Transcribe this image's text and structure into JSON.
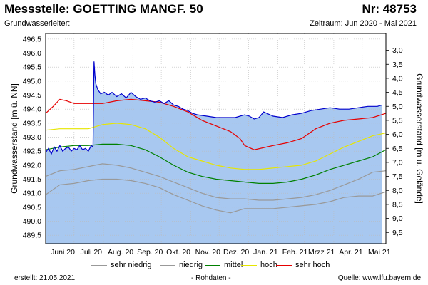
{
  "header": {
    "title": "Messstelle: GOETTING MANGF. 50",
    "number": "Nr: 48753",
    "aquifer_label": "Grundwasserleiter:",
    "period": "Zeitraum: Jun 2020 - Mai 2021"
  },
  "chart_data": {
    "type": "area",
    "ylabel_left": "Grundwasserstand [m ü. NN]",
    "ylabel_right": "Grundwasserstand [m u. Gelände]",
    "ylim_left": [
      489.2,
      496.7
    ],
    "ylim_right": [
      9.9,
      2.4
    ],
    "left_ticks": [
      "489,5",
      "490,0",
      "490,5",
      "491,0",
      "491,5",
      "492,0",
      "492,5",
      "493,0",
      "493,5",
      "494,0",
      "494,5",
      "495,0",
      "495,5",
      "496,0",
      "496,5"
    ],
    "right_ticks": [
      "3,0",
      "3,5",
      "4,0",
      "4,5",
      "5,0",
      "5,5",
      "6,0",
      "6,5",
      "7,0",
      "7,5",
      "8,0",
      "8,5",
      "9,0",
      "9,5"
    ],
    "right_tick_values": [
      3.0,
      3.5,
      4.0,
      4.5,
      5.0,
      5.5,
      6.0,
      6.5,
      7.0,
      7.5,
      8.0,
      8.5,
      9.0,
      9.5
    ],
    "x_ticks": [
      "Juni 20",
      "Juli 20",
      "Aug. 20",
      "Sep. 20",
      "Okt. 20",
      "Nov. 20",
      "Dez. 20",
      "Jan. 21",
      "Feb. 21",
      "Mrzz 21",
      "Apr. 21",
      "Mai 21"
    ],
    "x_range_days": [
      0,
      359
    ],
    "x_tick_days": [
      0,
      30,
      61,
      92,
      122,
      153,
      183,
      214,
      245,
      273,
      304,
      334
    ],
    "grid": true,
    "series": [
      {
        "name": "sehr niedrig",
        "color": "#999999",
        "x": [
          0,
          15,
          30,
          45,
          60,
          75,
          90,
          105,
          120,
          135,
          150,
          165,
          180,
          195,
          210,
          225,
          240,
          255,
          270,
          285,
          300,
          315,
          330,
          345,
          359
        ],
        "values": [
          490.95,
          491.3,
          491.35,
          491.45,
          491.5,
          491.5,
          491.45,
          491.35,
          491.2,
          490.95,
          490.75,
          490.55,
          490.4,
          490.3,
          490.45,
          490.45,
          490.45,
          490.5,
          490.55,
          490.6,
          490.7,
          490.85,
          490.9,
          490.9,
          491.05
        ]
      },
      {
        "name": "niedrig",
        "color": "#999999",
        "x": [
          0,
          15,
          30,
          45,
          60,
          75,
          90,
          105,
          120,
          135,
          150,
          165,
          180,
          195,
          210,
          225,
          240,
          255,
          270,
          285,
          300,
          315,
          330,
          345,
          359
        ],
        "values": [
          491.6,
          491.8,
          491.85,
          491.95,
          492.05,
          492.0,
          491.9,
          491.75,
          491.6,
          491.4,
          491.2,
          491.0,
          490.85,
          490.8,
          490.8,
          490.75,
          490.75,
          490.8,
          490.85,
          490.95,
          491.1,
          491.3,
          491.5,
          491.75,
          491.8
        ]
      },
      {
        "name": "mittel",
        "color": "#008000",
        "x": [
          0,
          15,
          30,
          45,
          60,
          75,
          90,
          105,
          120,
          135,
          150,
          165,
          180,
          195,
          210,
          225,
          240,
          255,
          270,
          285,
          300,
          315,
          330,
          345,
          359
        ],
        "values": [
          492.55,
          492.65,
          492.7,
          492.7,
          492.75,
          492.75,
          492.7,
          492.55,
          492.3,
          492.0,
          491.75,
          491.6,
          491.5,
          491.45,
          491.4,
          491.35,
          491.35,
          491.4,
          491.5,
          491.65,
          491.85,
          492.0,
          492.15,
          492.3,
          492.55
        ]
      },
      {
        "name": "hoch",
        "color": "#e6e600",
        "x": [
          0,
          15,
          30,
          45,
          60,
          75,
          90,
          105,
          120,
          135,
          150,
          165,
          180,
          195,
          210,
          225,
          240,
          255,
          270,
          285,
          300,
          315,
          330,
          345,
          359
        ],
        "values": [
          493.25,
          493.3,
          493.3,
          493.3,
          493.45,
          493.5,
          493.45,
          493.3,
          493.0,
          492.6,
          492.3,
          492.15,
          492.0,
          491.9,
          491.85,
          491.85,
          491.9,
          491.95,
          492.0,
          492.15,
          492.4,
          492.65,
          492.85,
          493.05,
          493.15
        ]
      },
      {
        "name": "sehr hoch",
        "color": "#e60000",
        "x": [
          0,
          8,
          15,
          22,
          30,
          45,
          60,
          75,
          90,
          105,
          120,
          135,
          150,
          165,
          180,
          195,
          205,
          210,
          220,
          240,
          255,
          270,
          285,
          300,
          315,
          330,
          345,
          359
        ],
        "values": [
          493.85,
          494.1,
          494.35,
          494.3,
          494.2,
          494.2,
          494.2,
          494.3,
          494.35,
          494.3,
          494.25,
          494.1,
          493.9,
          493.6,
          493.4,
          493.2,
          492.95,
          492.7,
          492.55,
          492.7,
          492.8,
          492.95,
          493.3,
          493.5,
          493.6,
          493.65,
          493.7,
          493.85
        ]
      }
    ],
    "raw": {
      "name": "Rohdaten",
      "color": "#0000cc",
      "fill": "#a8c8f0",
      "x": [
        0,
        3,
        6,
        9,
        12,
        15,
        18,
        21,
        24,
        27,
        30,
        33,
        36,
        39,
        42,
        45,
        48,
        50,
        51,
        52,
        53,
        55,
        58,
        62,
        66,
        70,
        75,
        80,
        85,
        90,
        95,
        100,
        105,
        110,
        115,
        120,
        125,
        130,
        135,
        140,
        145,
        150,
        155,
        160,
        170,
        180,
        190,
        200,
        210,
        215,
        220,
        225,
        230,
        240,
        250,
        260,
        270,
        280,
        290,
        300,
        310,
        320,
        330,
        340,
        350,
        355
      ],
      "values": [
        492.45,
        492.6,
        492.4,
        492.65,
        492.5,
        492.7,
        492.5,
        492.6,
        492.65,
        492.5,
        492.6,
        492.55,
        492.7,
        492.55,
        492.6,
        492.5,
        492.7,
        492.65,
        495.7,
        495.2,
        494.9,
        494.7,
        494.55,
        494.6,
        494.5,
        494.6,
        494.45,
        494.55,
        494.4,
        494.6,
        494.45,
        494.35,
        494.4,
        494.3,
        494.25,
        494.3,
        494.2,
        494.3,
        494.15,
        494.1,
        494.0,
        493.95,
        493.85,
        493.8,
        493.75,
        493.7,
        493.7,
        493.7,
        493.8,
        493.75,
        493.65,
        493.7,
        493.9,
        493.75,
        493.7,
        493.8,
        493.85,
        493.95,
        494.0,
        494.05,
        494.0,
        494.0,
        494.05,
        494.1,
        494.1,
        494.15
      ]
    },
    "legend": [
      "sehr niedrig",
      "niedrig",
      "mittel",
      "hoch",
      "sehr hoch"
    ]
  },
  "footer": {
    "created": "erstellt:  21.05.2021",
    "rawdata": "- Rohdaten -",
    "source": "Quelle: www.lfu.bayern.de"
  }
}
